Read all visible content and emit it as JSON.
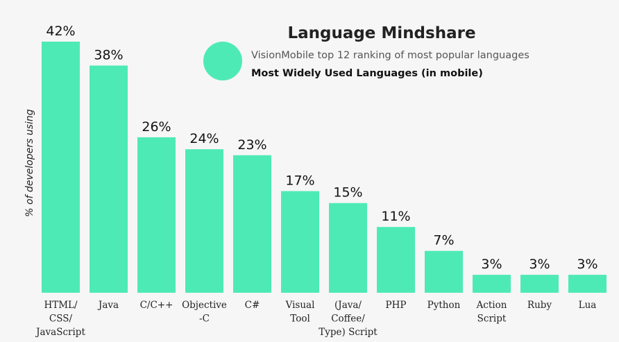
{
  "accent_color": "#4eeab5",
  "chart_data": {
    "type": "bar",
    "title": "Language Mindshare",
    "legend": {
      "line1": "VisionMobile top 12 ranking of most popular languages",
      "line2": "Most Widely Used Languages (in mobile)",
      "placement": "top-right"
    },
    "ylabel": "% of developers using",
    "xlabel": "",
    "ylim": [
      0,
      42
    ],
    "grid": false,
    "categories": [
      [
        "HTML/",
        "CSS/",
        "JavaScript"
      ],
      [
        "Java"
      ],
      [
        "C/C++"
      ],
      [
        "Objective",
        "-C"
      ],
      [
        "C#"
      ],
      [
        "Visual",
        "Tool"
      ],
      [
        "(Java/",
        "Coffee/",
        "Type) Script"
      ],
      [
        "PHP"
      ],
      [
        "Python"
      ],
      [
        "Action",
        "Script"
      ],
      [
        "Ruby"
      ],
      [
        "Lua"
      ]
    ],
    "values": [
      42,
      38,
      26,
      24,
      23,
      17,
      15,
      11,
      7,
      3,
      3,
      3
    ],
    "value_labels": [
      "42%",
      "38%",
      "26%",
      "24%",
      "23%",
      "17%",
      "15%",
      "11%",
      "7%",
      "3%",
      "3%",
      "3%"
    ]
  }
}
